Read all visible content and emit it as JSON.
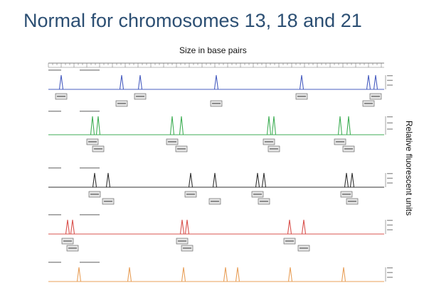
{
  "slide": {
    "title": "Normal for chromosomes 13, 18 and 21",
    "x_axis_label": "Size in base pairs",
    "y_axis_label": "Relative fluorescent units"
  },
  "colors": {
    "title": "#2c4f73",
    "blue": "#4a5fc1",
    "green": "#3fae55",
    "black": "#333333",
    "red": "#d9534f",
    "orange": "#e8a05a",
    "label_box": "#e6e6e6"
  },
  "chart_data": {
    "type": "line",
    "title": "Normal for chromosomes 13, 18 and 21",
    "xlabel": "Size in base pairs",
    "ylabel": "Relative fluorescent units",
    "series": [
      {
        "color_key": "blue",
        "peaks": [
          86,
          171,
          197,
          304,
          424,
          518,
          528
        ]
      },
      {
        "color_key": "green",
        "peaks": [
          130,
          138,
          242,
          255,
          378,
          385,
          478,
          490
        ]
      },
      {
        "color_key": "black",
        "peaks": [
          133,
          152,
          268,
          302,
          362,
          371,
          487,
          495
        ]
      },
      {
        "color_key": "red",
        "peaks": [
          95,
          102,
          256,
          263,
          407,
          427
        ]
      },
      {
        "color_key": "orange",
        "peaks": [
          111,
          182,
          258,
          317,
          334,
          408,
          483
        ]
      }
    ]
  }
}
